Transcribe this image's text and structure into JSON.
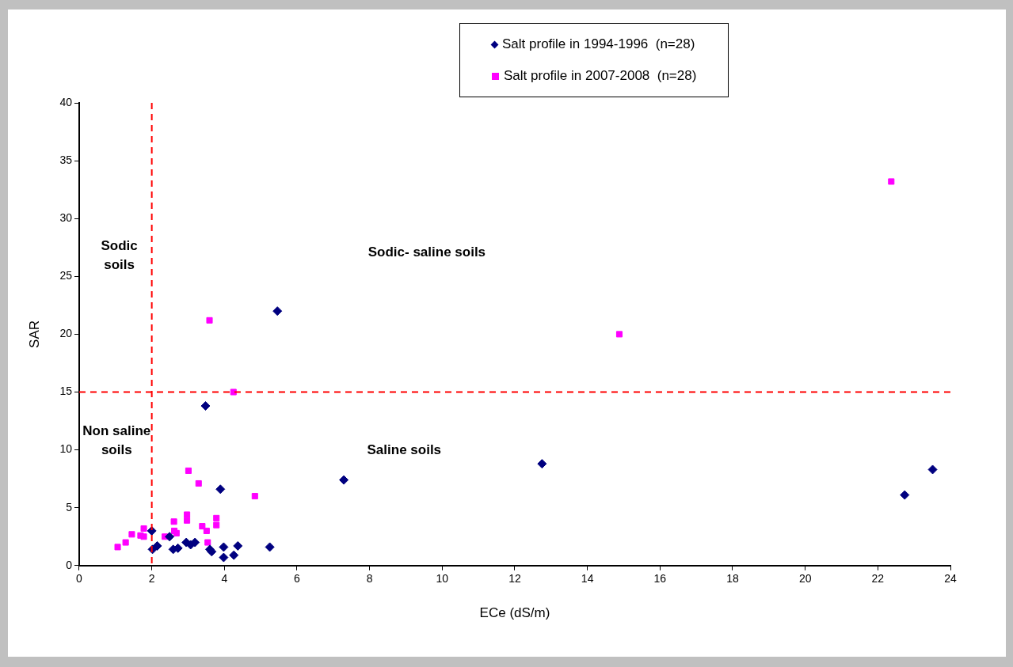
{
  "chart_data": {
    "type": "scatter",
    "xlabel": "ECe (dS/m)",
    "ylabel": "SAR",
    "xlim": [
      0,
      24
    ],
    "xticks": [
      0,
      2,
      4,
      6,
      8,
      10,
      12,
      14,
      16,
      18,
      20,
      22,
      24
    ],
    "ylim": [
      0,
      40
    ],
    "yticks": [
      0,
      5,
      10,
      15,
      20,
      25,
      30,
      35,
      40
    ],
    "grid": false,
    "legend": "top",
    "series": [
      {
        "name": "Salt profile in 1994-1996  (n=28)",
        "color": "#000080",
        "marker": "diamond",
        "x": [
          2.0,
          2.02,
          2.15,
          2.49,
          2.59,
          2.72,
          2.95,
          3.07,
          3.19,
          3.6,
          3.65,
          3.89,
          3.98,
          3.98,
          4.26,
          4.37,
          5.25,
          3.48,
          5.46,
          7.29,
          12.75,
          22.74,
          23.51
        ],
        "values": [
          3.0,
          1.4,
          1.7,
          2.5,
          1.4,
          1.5,
          2.0,
          1.8,
          2.0,
          1.4,
          1.2,
          6.6,
          1.6,
          0.7,
          0.9,
          1.7,
          1.6,
          13.8,
          22.0,
          7.4,
          8.8,
          6.1,
          8.3
        ]
      },
      {
        "name": "Salt profile in 2007-2008  (n=28)",
        "color": "#ff00ff",
        "marker": "square",
        "x": [
          1.06,
          1.28,
          1.45,
          1.69,
          1.78,
          1.78,
          2.36,
          2.61,
          2.62,
          2.68,
          2.97,
          2.97,
          3.01,
          3.29,
          3.39,
          3.51,
          3.54,
          3.78,
          3.78,
          4.84,
          3.59,
          4.25,
          14.88,
          22.37
        ],
        "values": [
          1.6,
          2.0,
          2.7,
          2.6,
          3.2,
          2.5,
          2.5,
          3.8,
          3.0,
          2.8,
          4.4,
          3.9,
          8.2,
          7.1,
          3.4,
          3.0,
          2.0,
          4.1,
          3.5,
          6.0,
          21.2,
          15.0,
          20.0,
          33.2
        ]
      }
    ],
    "ref_lines": [
      {
        "axis": "x",
        "value": 2,
        "color": "#ff0000",
        "line_style": "dashed"
      },
      {
        "axis": "y",
        "value": 15,
        "color": "#ff0000",
        "line_style": "dashed"
      }
    ],
    "annotations": [
      "Sodic\nsoils",
      "Sodic- saline soils",
      "Non saline\nsoils",
      "Saline soils"
    ]
  }
}
